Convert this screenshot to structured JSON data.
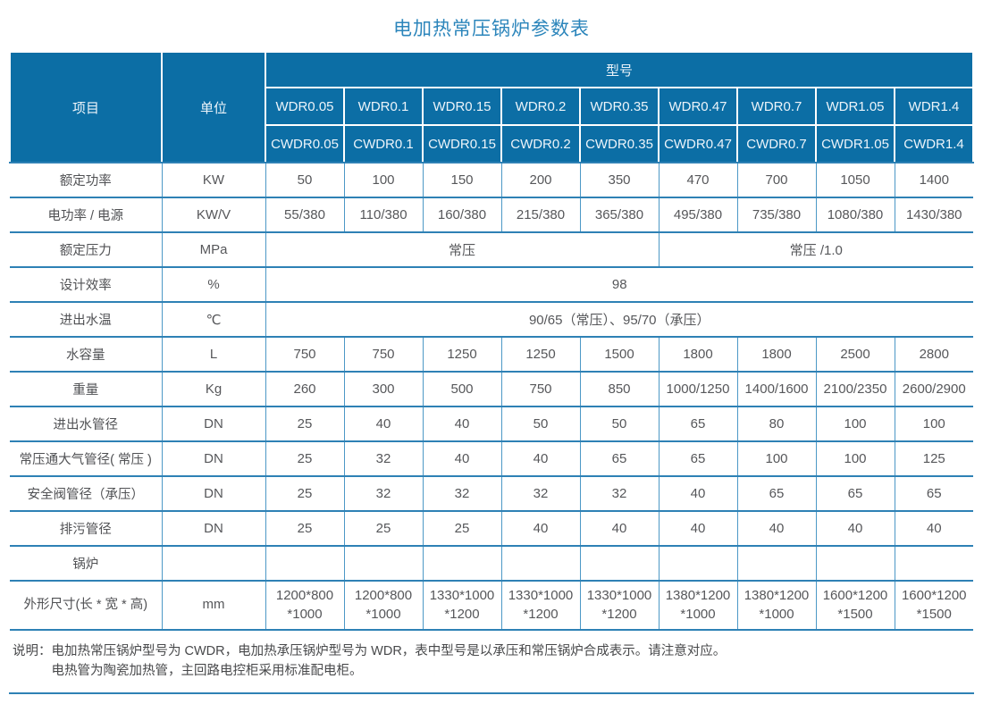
{
  "title": "电加热常压锅炉参数表",
  "colors": {
    "header_bg": "#0c6ea5",
    "header_text": "#ecf4fa",
    "grid_line_horizontal": "#2e81b5",
    "grid_line_vertical": "#4c98c6",
    "title_text": "#2b85bb",
    "body_text": "#56575a"
  },
  "table": {
    "corner_item": "项目",
    "corner_unit": "单位",
    "model_group": "型号",
    "model_rows": [
      [
        "WDR0.05",
        "WDR0.1",
        "WDR0.15",
        "WDR0.2",
        "WDR0.35",
        "WDR0.47",
        "WDR0.7",
        "WDR1.05",
        "WDR1.4"
      ],
      [
        "CWDR0.05",
        "CWDR0.1",
        "CWDR0.15",
        "CWDR0.2",
        "CWDR0.35",
        "CWDR0.47",
        "CWDR0.7",
        "CWDR1.05",
        "CWDR1.4"
      ]
    ],
    "rows": [
      {
        "label": "额定功率",
        "unit": "KW",
        "cells": [
          {
            "t": "50"
          },
          {
            "t": "100"
          },
          {
            "t": "150"
          },
          {
            "t": "200"
          },
          {
            "t": "350"
          },
          {
            "t": "470"
          },
          {
            "t": "700"
          },
          {
            "t": "1050"
          },
          {
            "t": "1400"
          }
        ]
      },
      {
        "label": "电功率 / 电源",
        "unit": "KW/V",
        "cells": [
          {
            "t": "55/380"
          },
          {
            "t": "110/380"
          },
          {
            "t": "160/380"
          },
          {
            "t": "215/380"
          },
          {
            "t": "365/380"
          },
          {
            "t": "495/380"
          },
          {
            "t": "735/380"
          },
          {
            "t": "1080/380"
          },
          {
            "t": "1430/380"
          }
        ]
      },
      {
        "label": "额定压力",
        "unit": "MPa",
        "cells": [
          {
            "t": "常压",
            "s": 5
          },
          {
            "t": "常压 /1.0",
            "s": 4
          }
        ]
      },
      {
        "label": "设计效率",
        "unit": "%",
        "cells": [
          {
            "t": "98",
            "s": 9
          }
        ]
      },
      {
        "label": "进出水温",
        "unit": "℃",
        "cells": [
          {
            "t": "90/65（常压）、95/70（承压）",
            "s": 9
          }
        ]
      },
      {
        "label": "水容量",
        "unit": "L",
        "cells": [
          {
            "t": "750"
          },
          {
            "t": "750"
          },
          {
            "t": "1250"
          },
          {
            "t": "1250"
          },
          {
            "t": "1500"
          },
          {
            "t": "1800"
          },
          {
            "t": "1800"
          },
          {
            "t": "2500"
          },
          {
            "t": "2800"
          }
        ]
      },
      {
        "label": "重量",
        "unit": "Kg",
        "cells": [
          {
            "t": "260"
          },
          {
            "t": "300"
          },
          {
            "t": "500"
          },
          {
            "t": "750"
          },
          {
            "t": "850"
          },
          {
            "t": "1000/1250"
          },
          {
            "t": "1400/1600"
          },
          {
            "t": "2100/2350"
          },
          {
            "t": "2600/2900"
          }
        ]
      },
      {
        "label": "进出水管径",
        "unit": "DN",
        "cells": [
          {
            "t": "25"
          },
          {
            "t": "40"
          },
          {
            "t": "40"
          },
          {
            "t": "50"
          },
          {
            "t": "50"
          },
          {
            "t": "65"
          },
          {
            "t": "80"
          },
          {
            "t": "100"
          },
          {
            "t": "100"
          }
        ]
      },
      {
        "label": "常压通大气管径( 常压 )",
        "unit": "DN",
        "cells": [
          {
            "t": "25"
          },
          {
            "t": "32"
          },
          {
            "t": "40"
          },
          {
            "t": "40"
          },
          {
            "t": "65"
          },
          {
            "t": "65"
          },
          {
            "t": "100"
          },
          {
            "t": "100"
          },
          {
            "t": "125"
          }
        ]
      },
      {
        "label": "安全阀管径（承压）",
        "unit": "DN",
        "cells": [
          {
            "t": "25"
          },
          {
            "t": "32"
          },
          {
            "t": "32"
          },
          {
            "t": "32"
          },
          {
            "t": "32"
          },
          {
            "t": "40"
          },
          {
            "t": "65"
          },
          {
            "t": "65"
          },
          {
            "t": "65"
          }
        ]
      },
      {
        "label": "排污管径",
        "unit": "DN",
        "cells": [
          {
            "t": "25"
          },
          {
            "t": "25"
          },
          {
            "t": "25"
          },
          {
            "t": "40"
          },
          {
            "t": "40"
          },
          {
            "t": "40"
          },
          {
            "t": "40"
          },
          {
            "t": "40"
          },
          {
            "t": "40"
          }
        ]
      },
      {
        "label": "锅炉",
        "unit": "",
        "cells": [
          {
            "t": ""
          },
          {
            "t": ""
          },
          {
            "t": ""
          },
          {
            "t": ""
          },
          {
            "t": ""
          },
          {
            "t": ""
          },
          {
            "t": ""
          },
          {
            "t": ""
          },
          {
            "t": ""
          }
        ]
      },
      {
        "label": "外形尺寸(长 * 宽 * 高)",
        "unit": "mm",
        "cells": [
          {
            "t": "1200*800\n*1000"
          },
          {
            "t": "1200*800\n*1000"
          },
          {
            "t": "1330*1000\n*1200"
          },
          {
            "t": "1330*1000\n*1200"
          },
          {
            "t": "1330*1000\n*1200"
          },
          {
            "t": "1380*1200\n*1000"
          },
          {
            "t": "1380*1200\n*1000"
          },
          {
            "t": "1600*1200\n*1500"
          },
          {
            "t": "1600*1200\n*1500"
          }
        ]
      }
    ]
  },
  "note": {
    "prefix": "说明：",
    "lines": [
      "电加热常压锅炉型号为 CWDR，电加热承压锅炉型号为 WDR，表中型号是以承压和常压锅炉合成表示。请注意对应。",
      "电热管为陶瓷加热管，主回路电控柜采用标准配电柜。"
    ]
  }
}
